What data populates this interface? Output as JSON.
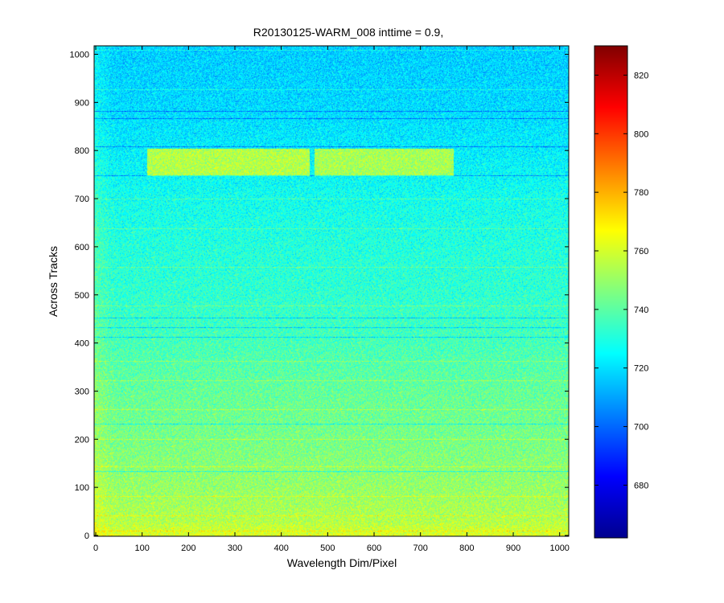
{
  "chart_data": {
    "type": "heatmap",
    "title": "R20130125-WARM_008 inttime = 0.9,",
    "xlabel": "Wavelength Dim/Pixel",
    "ylabel": "Across Tracks",
    "xlim": [
      0,
      1024
    ],
    "ylim": [
      0,
      1024
    ],
    "x_ticks": [
      0,
      100,
      200,
      300,
      400,
      500,
      600,
      700,
      800,
      900,
      1000
    ],
    "y_ticks": [
      0,
      100,
      200,
      300,
      400,
      500,
      600,
      700,
      800,
      900,
      1000
    ],
    "colormap": "jet",
    "clim": [
      662,
      830
    ],
    "colorbar_ticks": [
      680,
      700,
      720,
      740,
      760,
      780,
      800,
      820
    ],
    "grid": false,
    "baseline_profile": [
      {
        "y": 0,
        "value": 757
      },
      {
        "y": 100,
        "value": 750
      },
      {
        "y": 200,
        "value": 745
      },
      {
        "y": 300,
        "value": 742
      },
      {
        "y": 400,
        "value": 737
      },
      {
        "y": 500,
        "value": 733
      },
      {
        "y": 600,
        "value": 731
      },
      {
        "y": 700,
        "value": 728
      },
      {
        "y": 800,
        "value": 723
      },
      {
        "y": 900,
        "value": 719
      },
      {
        "y": 1024,
        "value": 717
      }
    ],
    "bright_regions": [
      {
        "x": [
          110,
          460
        ],
        "y": [
          748,
          805
        ],
        "value": 755
      },
      {
        "x": [
          470,
          770
        ],
        "y": [
          748,
          805
        ],
        "value": 753
      }
    ],
    "bright_lines_y": [
      10,
      42,
      82,
      143,
      201,
      262,
      322,
      362,
      478,
      558,
      638,
      700,
      928,
      1010
    ],
    "dark_lines_y": [
      133,
      232,
      412,
      432,
      453,
      748,
      808,
      868,
      882
    ]
  }
}
